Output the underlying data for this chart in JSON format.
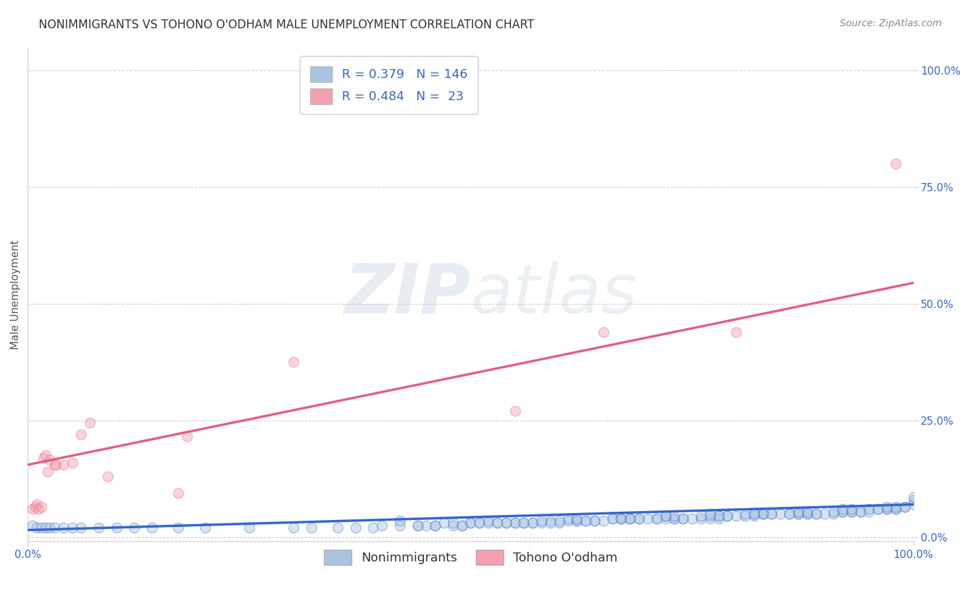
{
  "title": "NONIMMIGRANTS VS TOHONO O'ODHAM MALE UNEMPLOYMENT CORRELATION CHART",
  "source": "Source: ZipAtlas.com",
  "ylabel": "Male Unemployment",
  "xlim": [
    0.0,
    1.0
  ],
  "ylim": [
    -0.01,
    1.05
  ],
  "ytick_labels": [
    "0.0%",
    "25.0%",
    "50.0%",
    "75.0%",
    "100.0%"
  ],
  "ytick_vals": [
    0.0,
    0.25,
    0.5,
    0.75,
    1.0
  ],
  "xtick_labels": [
    "0.0%",
    "100.0%"
  ],
  "xtick_vals": [
    0.0,
    1.0
  ],
  "grid_color": "#d0d0d0",
  "background_color": "#ffffff",
  "watermark": "ZIPatlas",
  "legend_entries": [
    {
      "label": "Nonimmigrants",
      "R": 0.379,
      "N": 146,
      "color": "#aac4e0",
      "line_color": "#3366cc"
    },
    {
      "label": "Tohono O'odham",
      "R": 0.484,
      "N": 23,
      "color": "#f4a0b0",
      "line_color": "#e06080"
    }
  ],
  "nonimmigrants": {
    "x": [
      0.005,
      0.01,
      0.015,
      0.02,
      0.025,
      0.03,
      0.04,
      0.05,
      0.06,
      0.08,
      0.1,
      0.12,
      0.14,
      0.17,
      0.2,
      0.25,
      0.3,
      0.32,
      0.35,
      0.37,
      0.39,
      0.4,
      0.42,
      0.44,
      0.45,
      0.46,
      0.47,
      0.48,
      0.49,
      0.5,
      0.51,
      0.52,
      0.53,
      0.54,
      0.55,
      0.56,
      0.57,
      0.58,
      0.59,
      0.6,
      0.61,
      0.62,
      0.63,
      0.64,
      0.65,
      0.66,
      0.67,
      0.68,
      0.69,
      0.7,
      0.71,
      0.72,
      0.73,
      0.74,
      0.75,
      0.76,
      0.77,
      0.78,
      0.79,
      0.8,
      0.81,
      0.82,
      0.83,
      0.84,
      0.85,
      0.86,
      0.87,
      0.88,
      0.89,
      0.9,
      0.91,
      0.92,
      0.93,
      0.94,
      0.95,
      0.96,
      0.97,
      0.98,
      0.99,
      1.0,
      0.42,
      0.48,
      0.52,
      0.57,
      0.61,
      0.66,
      0.72,
      0.78,
      0.83,
      0.88,
      0.93,
      0.97,
      1.0,
      0.5,
      0.55,
      0.6,
      0.68,
      0.73,
      0.77,
      0.82,
      0.87,
      0.92,
      0.96,
      0.44,
      0.49,
      0.54,
      0.59,
      0.64,
      0.69,
      0.74,
      0.79,
      0.84,
      0.89,
      0.94,
      0.98,
      0.46,
      0.51,
      0.56,
      0.62,
      0.67,
      0.71,
      0.76,
      0.81,
      0.86,
      0.91,
      0.95,
      0.99,
      0.53,
      0.58,
      0.63,
      0.68,
      0.73,
      0.78,
      0.83,
      0.88,
      0.93,
      0.98,
      0.62,
      0.67,
      0.72,
      0.77,
      0.82,
      0.87,
      0.92,
      0.97,
      1.0
    ],
    "y": [
      0.025,
      0.02,
      0.02,
      0.02,
      0.02,
      0.02,
      0.02,
      0.02,
      0.02,
      0.02,
      0.02,
      0.02,
      0.02,
      0.02,
      0.02,
      0.02,
      0.02,
      0.02,
      0.02,
      0.02,
      0.02,
      0.025,
      0.025,
      0.025,
      0.025,
      0.025,
      0.03,
      0.025,
      0.025,
      0.03,
      0.03,
      0.03,
      0.03,
      0.03,
      0.03,
      0.03,
      0.03,
      0.03,
      0.035,
      0.03,
      0.035,
      0.035,
      0.035,
      0.035,
      0.035,
      0.04,
      0.04,
      0.04,
      0.04,
      0.04,
      0.04,
      0.04,
      0.04,
      0.04,
      0.04,
      0.04,
      0.04,
      0.045,
      0.045,
      0.045,
      0.045,
      0.045,
      0.05,
      0.05,
      0.05,
      0.05,
      0.05,
      0.05,
      0.05,
      0.05,
      0.05,
      0.055,
      0.055,
      0.055,
      0.055,
      0.06,
      0.06,
      0.06,
      0.065,
      0.07,
      0.035,
      0.03,
      0.035,
      0.03,
      0.04,
      0.04,
      0.045,
      0.04,
      0.05,
      0.05,
      0.055,
      0.06,
      0.08,
      0.03,
      0.03,
      0.035,
      0.04,
      0.04,
      0.045,
      0.05,
      0.05,
      0.055,
      0.06,
      0.025,
      0.025,
      0.03,
      0.03,
      0.035,
      0.04,
      0.04,
      0.045,
      0.05,
      0.05,
      0.055,
      0.06,
      0.025,
      0.03,
      0.03,
      0.035,
      0.04,
      0.04,
      0.045,
      0.05,
      0.05,
      0.055,
      0.06,
      0.065,
      0.03,
      0.035,
      0.035,
      0.04,
      0.045,
      0.045,
      0.05,
      0.055,
      0.06,
      0.065,
      0.04,
      0.04,
      0.045,
      0.05,
      0.05,
      0.055,
      0.06,
      0.065,
      0.085
    ],
    "scatter_color": "#aac4e0",
    "line_color": "#3366cc",
    "R": 0.379,
    "N": 146,
    "line_x0": 0.0,
    "line_y0": 0.015,
    "line_x1": 1.0,
    "line_y1": 0.07
  },
  "tohono": {
    "x": [
      0.005,
      0.008,
      0.01,
      0.012,
      0.015,
      0.018,
      0.02,
      0.022,
      0.025,
      0.03,
      0.032,
      0.04,
      0.05,
      0.06,
      0.07,
      0.09,
      0.17,
      0.18,
      0.3,
      0.55,
      0.65,
      0.8,
      0.98
    ],
    "y": [
      0.06,
      0.065,
      0.07,
      0.06,
      0.065,
      0.17,
      0.175,
      0.14,
      0.165,
      0.155,
      0.155,
      0.155,
      0.16,
      0.22,
      0.245,
      0.13,
      0.095,
      0.215,
      0.375,
      0.27,
      0.44,
      0.44,
      0.8
    ],
    "scatter_color": "#f4a0b0",
    "line_color": "#e06080",
    "R": 0.484,
    "N": 23,
    "line_x0": 0.0,
    "line_y0": 0.155,
    "line_x1": 1.0,
    "line_y1": 0.545
  },
  "title_fontsize": 12,
  "axis_label_fontsize": 11,
  "tick_fontsize": 11,
  "legend_fontsize": 13,
  "source_fontsize": 10,
  "marker_size": 110,
  "marker_alpha": 0.45
}
